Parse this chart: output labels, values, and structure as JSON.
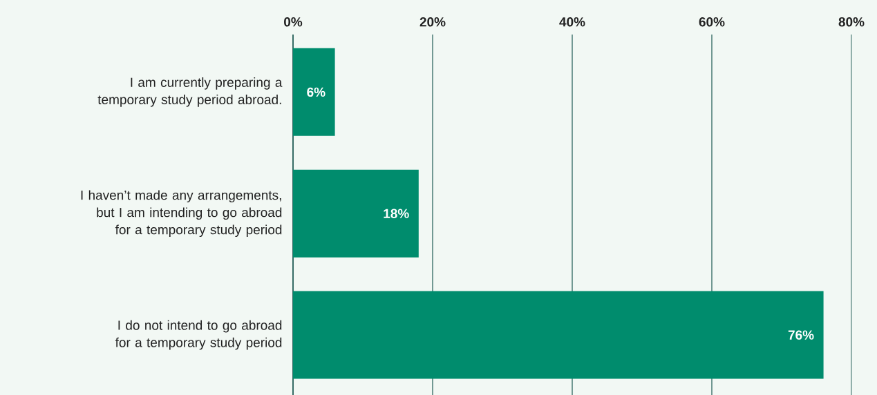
{
  "chart_data": {
    "type": "bar",
    "orientation": "horizontal",
    "categories": [
      "I am currently preparing a temporary study period abroad.",
      "I haven’t made any arrangements, but I am intending to go abroad for a temporary study period",
      "I do not intend to go abroad for a temporary study period"
    ],
    "values": [
      6,
      18,
      76
    ],
    "value_labels": [
      "6%",
      "18%",
      "76%"
    ],
    "color": "#008c6d",
    "xlim": [
      0,
      80
    ],
    "xticks": [
      {
        "value": 0,
        "label": "0%"
      },
      {
        "value": 20,
        "label": "20%"
      },
      {
        "value": 40,
        "label": "40%"
      },
      {
        "value": 60,
        "label": "60%"
      },
      {
        "value": 80,
        "label": "80%"
      }
    ],
    "grid": "x"
  }
}
